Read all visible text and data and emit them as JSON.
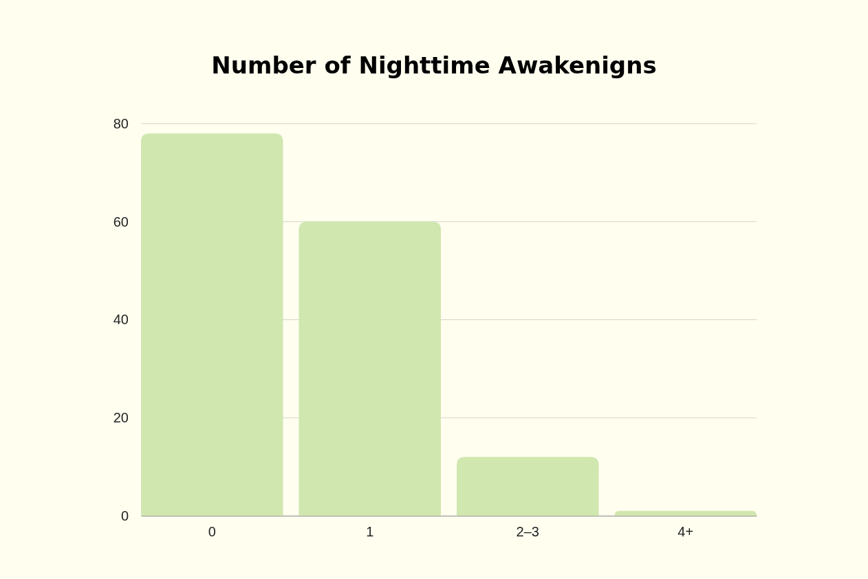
{
  "chart_data": {
    "type": "bar",
    "title": "Number of Nighttime Awakenigns",
    "categories": [
      "0",
      "1",
      "2–3",
      "4+"
    ],
    "values": [
      78,
      60,
      12,
      1
    ],
    "color": "#d0e7b0",
    "ylim": [
      0,
      80
    ],
    "yticks": [
      0,
      20,
      40,
      60,
      80
    ],
    "grid": "y"
  }
}
